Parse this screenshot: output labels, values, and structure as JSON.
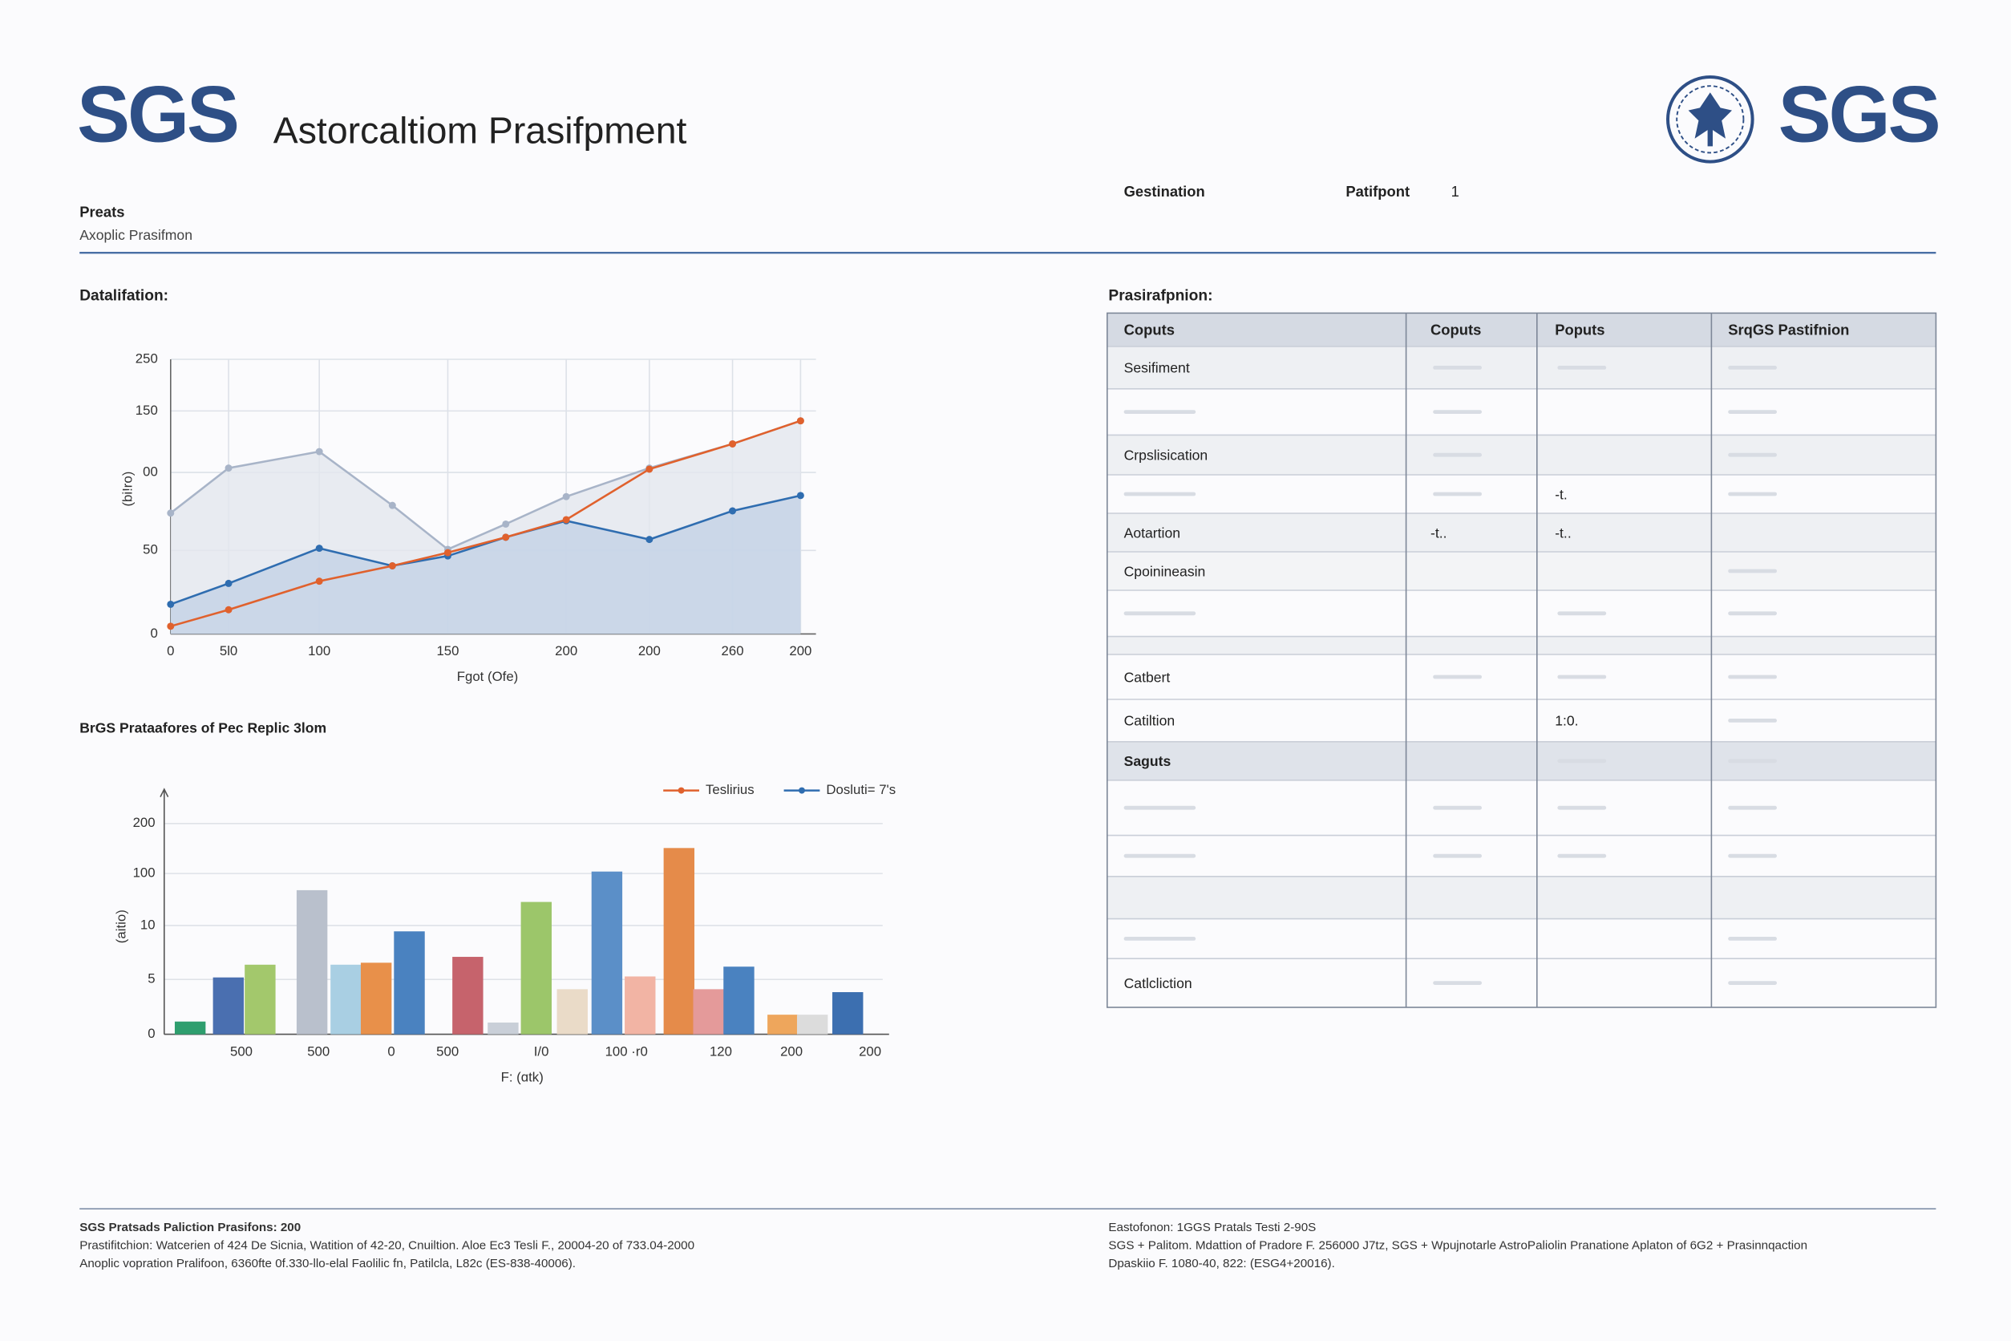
{
  "header": {
    "logo_left": "SGS",
    "title": "Astorcaltiom Prasifpment",
    "label": "Preats",
    "sublabel": "Axoplic Prasifmon",
    "field1": "Gestination",
    "field2": "Patifpont",
    "field2_value": "1",
    "logo_right": "SGS"
  },
  "chart_data": [
    {
      "type": "line",
      "section_title": "Datalifation:",
      "x_label": "Fgot (Ofe)",
      "y_label": "(bi!ro)",
      "x": [
        0,
        23,
        59,
        88,
        110,
        133,
        157,
        190,
        223,
        250
      ],
      "xlim": [
        0,
        250
      ],
      "xticks": [
        0,
        {
          "value": 23,
          "label": "5l0"
        },
        {
          "value": 59,
          "label": "100"
        },
        {
          "value": 110,
          "label": "150"
        },
        {
          "value": 157,
          "label": "200"
        },
        {
          "value": 190,
          "label": "200"
        },
        {
          "value": 223,
          "label": "260"
        },
        {
          "value": 250,
          "label": "200"
        }
      ],
      "ylim": [
        0,
        250
      ],
      "yticks": [
        0,
        {
          "value": 76,
          "label": "50"
        },
        {
          "value": 147,
          "label": "00"
        },
        {
          "value": 203,
          "label": "150"
        },
        250
      ],
      "grid": true,
      "series": [
        {
          "color": "#a8b4c8",
          "fill": "#e4e7ee",
          "values": [
            110,
            151,
            166,
            117,
            77,
            100,
            125,
            151,
            173,
            194
          ]
        },
        {
          "color": "#2f6db0",
          "fill": "#c3d2e6",
          "values": [
            27,
            46,
            78,
            62,
            71,
            88,
            103,
            86,
            112,
            126
          ]
        },
        {
          "color": "#e0612d",
          "values": [
            7,
            22,
            48,
            62,
            74,
            88,
            104,
            150,
            173,
            194
          ]
        }
      ]
    },
    {
      "type": "bar",
      "title": "BrGS Prataafores of Pec Replic 3lom",
      "x_label": "F: (ɑtk)",
      "y_label": "(aitio)",
      "x": [
        3.6,
        8.9,
        13.3,
        20.5,
        25.2,
        29.4,
        34.0,
        42.1,
        47.0,
        51.6,
        56.6,
        61.4,
        66.0,
        71.4,
        75.5,
        79.7,
        85.8,
        89.9,
        94.8
      ],
      "values": [
        13,
        58,
        71,
        147,
        71,
        73,
        105,
        79,
        12,
        135,
        46,
        166,
        59,
        190,
        46,
        69,
        20,
        20,
        43
      ],
      "colors": [
        "#2e9e6e",
        "#4a6fb0",
        "#a3c86c",
        "#b9c0cc",
        "#a9cfe3",
        "#e8904a",
        "#4a82c0",
        "#c6636c",
        "#c9cfd8",
        "#9cc66a",
        "#eadbc8",
        "#5b8fc8",
        "#f2b4a4",
        "#e58b4a",
        "#e49a9a",
        "#4a82c0",
        "#eea65c",
        "#dcdcdc",
        "#3c6fb0"
      ],
      "xlim": [
        0,
        100
      ],
      "xticks": [
        {
          "value": 10.7,
          "label": "500"
        },
        {
          "value": 21.4,
          "label": "500"
        },
        {
          "value": 31.5,
          "label": "0"
        },
        {
          "value": 39.3,
          "label": "500"
        },
        {
          "value": 52.3,
          "label": "I/0"
        },
        {
          "value": 64.1,
          "label": "100 ·r0"
        },
        {
          "value": 77.2,
          "label": "120"
        },
        {
          "value": 87.0,
          "label": "200"
        },
        {
          "value": 97.9,
          "label": "200"
        }
      ],
      "ylim": [
        0,
        250
      ],
      "yticks": [
        0,
        {
          "value": 56,
          "label": "5"
        },
        {
          "value": 111,
          "label": "10"
        },
        {
          "value": 164,
          "label": "100"
        },
        {
          "value": 215,
          "label": "200"
        }
      ],
      "grid": true,
      "legend": [
        {
          "name": "Teslirius",
          "color": "#e0612d"
        },
        {
          "name": "Dosluti= 7's",
          "color": "#2f6db0"
        }
      ]
    }
  ],
  "table": {
    "heading": "Prasirafpnion:",
    "columns": [
      "Coputs",
      "Coputs",
      "Poputs",
      "SrqGS Pastifnion"
    ],
    "rows": [
      [
        "Sesifiment",
        null,
        null,
        null
      ],
      [
        null,
        null,
        null,
        null
      ],
      [
        "Crpslisication",
        null,
        null,
        null
      ],
      [
        null,
        null,
        "-t.",
        null
      ],
      [
        "Aotartion",
        "-t..",
        "-t..",
        null
      ],
      [
        "Cpoinineasin",
        null,
        null,
        null
      ],
      [
        null,
        null,
        null,
        null
      ],
      [
        null,
        null,
        null,
        null
      ],
      [
        "Catbert",
        null,
        null,
        null
      ],
      [
        "Catiltion",
        null,
        "1:0.",
        null
      ],
      [
        "Saguts",
        null,
        null,
        null
      ],
      [
        null,
        null,
        null,
        null
      ],
      [
        null,
        null,
        null,
        null
      ],
      [
        null,
        null,
        null,
        null
      ],
      [
        null,
        null,
        null,
        null
      ],
      [
        "Catlcliction",
        null,
        null,
        null
      ]
    ]
  },
  "footer": {
    "left": [
      "SGS Pratsads Paliction Prasifons: 200",
      "Prastifitchion: Watcerien of 424 De Sicnia, Watition of 42-20, Cnuiltion. Aloe Ec3 Tesli F., 20004-20 of 733.04-2000",
      "Anoplic vopration Pralifoon, 6360fte 0f.330-llo-elal Faolilic fn, Patilcla, L82c (ES-838-40006)."
    ],
    "right": [
      "Eastofonon: 1GGS Pratals Testi 2-90S",
      "SGS + Palitom. Mdattion of Pradore F. 256000 J7tz, SGS + Wpujnotarle AstroPaliolin Pranatione Aplaton of 6G2 + Prasinnqaction",
      "Dpaskiio F. 1080-40, 822: (ESG4+20016)."
    ]
  }
}
